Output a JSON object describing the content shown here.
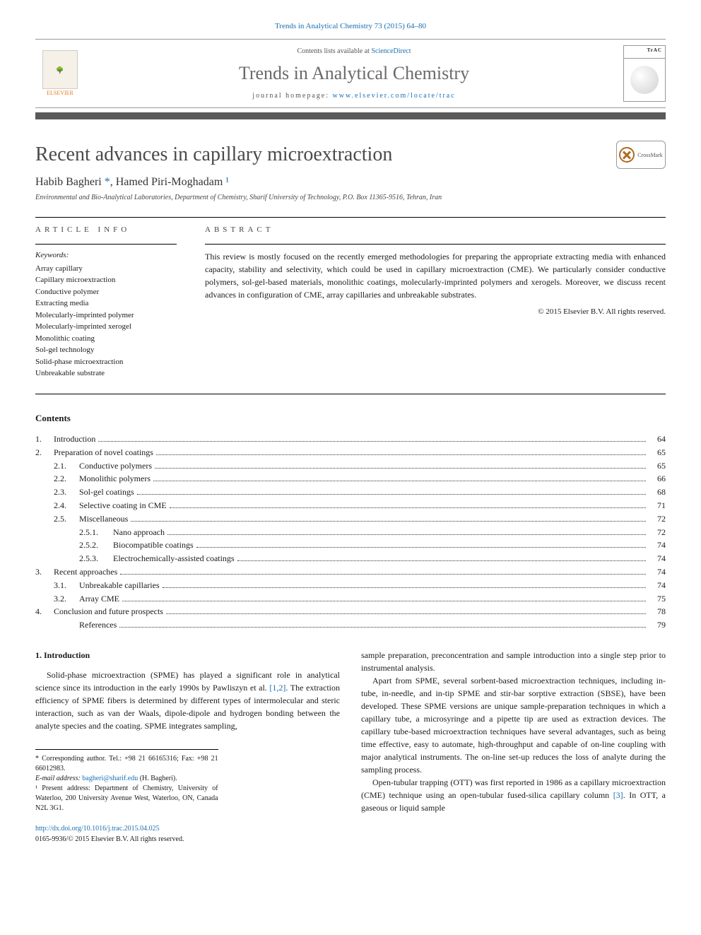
{
  "citation": "Trends in Analytical Chemistry 73 (2015) 64–80",
  "header": {
    "contents_prefix": "Contents lists available at ",
    "contents_link": "ScienceDirect",
    "journal_title": "Trends in Analytical Chemistry",
    "homepage_prefix": "journal homepage: ",
    "homepage_link": "www.elsevier.com/locate/trac",
    "publisher": "ELSEVIER",
    "cover_label": "TrAC"
  },
  "article": {
    "title": "Recent advances in capillary microextraction",
    "crossmark": "CrossMark",
    "authors_html": "Habib Bagheri *, Hamed Piri-Moghadam ¹",
    "author1": "Habib Bagheri",
    "author1_marker": " *",
    "author2": ", Hamed Piri-Moghadam",
    "author2_marker": " ¹",
    "affiliation": "Environmental and Bio-Analytical Laboratories, Department of Chemistry, Sharif University of Technology, P.O. Box 11365-9516, Tehran, Iran"
  },
  "info": {
    "heading": "ARTICLE INFO",
    "keywords_label": "Keywords:",
    "keywords": [
      "Array capillary",
      "Capillary microextraction",
      "Conductive polymer",
      "Extracting media",
      "Molecularly-imprinted polymer",
      "Molecularly-imprinted xerogel",
      "Monolithic coating",
      "Sol-gel technology",
      "Solid-phase microextraction",
      "Unbreakable substrate"
    ]
  },
  "abstract": {
    "heading": "ABSTRACT",
    "text": "This review is mostly focused on the recently emerged methodologies for preparing the appropriate extracting media with enhanced capacity, stability and selectivity, which could be used in capillary microextraction (CME). We particularly consider conductive polymers, sol-gel-based materials, monolithic coatings, molecularly-imprinted polymers and xerogels. Moreover, we discuss recent advances in configuration of CME, array capillaries and unbreakable substrates.",
    "copyright": "© 2015 Elsevier B.V. All rights reserved."
  },
  "contents_heading": "Contents",
  "toc": [
    {
      "num": "1.",
      "indent": 0,
      "title": "Introduction",
      "page": "64"
    },
    {
      "num": "2.",
      "indent": 0,
      "title": "Preparation of novel coatings",
      "page": "65"
    },
    {
      "num": "2.1.",
      "indent": 1,
      "title": "Conductive polymers",
      "page": "65"
    },
    {
      "num": "2.2.",
      "indent": 1,
      "title": "Monolithic polymers",
      "page": "66"
    },
    {
      "num": "2.3.",
      "indent": 1,
      "title": "Sol-gel coatings",
      "page": "68"
    },
    {
      "num": "2.4.",
      "indent": 1,
      "title": "Selective coating in CME",
      "page": "71"
    },
    {
      "num": "2.5.",
      "indent": 1,
      "title": "Miscellaneous",
      "page": "72"
    },
    {
      "num": "2.5.1.",
      "indent": 2,
      "title": "Nano approach",
      "page": "72"
    },
    {
      "num": "2.5.2.",
      "indent": 2,
      "title": "Biocompatible coatings",
      "page": "74"
    },
    {
      "num": "2.5.3.",
      "indent": 2,
      "title": "Electrochemically-assisted coatings",
      "page": "74"
    },
    {
      "num": "3.",
      "indent": 0,
      "title": "Recent approaches",
      "page": "74"
    },
    {
      "num": "3.1.",
      "indent": 1,
      "title": "Unbreakable capillaries",
      "page": "74"
    },
    {
      "num": "3.2.",
      "indent": 1,
      "title": "Array CME",
      "page": "75"
    },
    {
      "num": "4.",
      "indent": 0,
      "title": "Conclusion and future prospects",
      "page": "78"
    },
    {
      "num": "",
      "indent": 1,
      "title": "References",
      "page": "79"
    }
  ],
  "body": {
    "section_num": "1. ",
    "section_title": "Introduction",
    "col1_para1": "Solid-phase microextraction (SPME) has played a significant role in analytical science since its introduction in the early 1990s by Pawliszyn et al. ",
    "col1_ref1": "[1,2]",
    "col1_para1_b": ". The extraction efficiency of SPME fibers is determined by different types of intermolecular and steric interaction, such as van der Waals, dipole-dipole and hydrogen bonding between the analyte species and the coating. SPME integrates sampling,",
    "col2_para1": "sample preparation, preconcentration and sample introduction into a single step prior to instrumental analysis.",
    "col2_para2": "Apart from SPME, several sorbent-based microextraction techniques, including in-tube, in-needle, and in-tip SPME and stir-bar sorptive extraction (SBSE), have been developed. These SPME versions are unique sample-preparation techniques in which a capillary tube, a microsyringe and a pipette tip are used as extraction devices. The capillary tube-based microextraction techniques have several advantages, such as being time effective, easy to automate, high-throughput and capable of on-line coupling with major analytical instruments. The on-line set-up reduces the loss of analyte during the sampling process.",
    "col2_para3_a": "Open-tubular trapping (OTT) was first reported in 1986 as a capillary microextraction (CME) technique using an open-tubular fused-silica capillary column ",
    "col2_ref3": "[3]",
    "col2_para3_b": ". In OTT, a gaseous or liquid sample"
  },
  "footnotes": {
    "corr": "* Corresponding author. Tel.: +98 21 66165316; Fax: +98 21 66012983.",
    "email_label": "E-mail address: ",
    "email": "bagheri@sharif.edu",
    "email_suffix": " (H. Bagheri).",
    "present": "¹ Present address: Department of Chemistry, University of Waterloo, 200 University Avenue West, Waterloo, ON, Canada N2L 3G1."
  },
  "doi": {
    "link": "http://dx.doi.org/10.1016/j.trac.2015.04.025",
    "issn_line": "0165-9936/© 2015 Elsevier B.V. All rights reserved."
  },
  "colors": {
    "link": "#1a6fb0",
    "title_gray": "#4a4a4a",
    "bar": "#5a5a5a"
  }
}
